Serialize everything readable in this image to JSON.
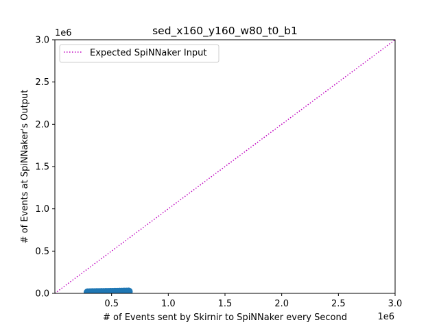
{
  "chart_data": {
    "type": "scatter",
    "title": "sed_x160_y160_w80_t0_b1",
    "xlabel": "# of Events sent by Skirnir to SpiNNaker every Second",
    "ylabel": "# of Events at SpiNNaker's Output",
    "x_offset_label": "1e6",
    "y_offset_label": "1e6",
    "xlim": [
      0,
      3000000
    ],
    "ylim": [
      0,
      3000000
    ],
    "x_ticks": [
      500000,
      1000000,
      1500000,
      2000000,
      2500000,
      3000000
    ],
    "x_tick_labels": [
      "0.5",
      "1.0",
      "1.5",
      "2.0",
      "2.5",
      "3.0"
    ],
    "y_ticks": [
      0,
      500000,
      1000000,
      1500000,
      2000000,
      2500000,
      3000000
    ],
    "y_tick_labels": [
      "0.0",
      "0.5",
      "1.0",
      "1.5",
      "2.0",
      "2.5",
      "3.0"
    ],
    "grid": false,
    "legend_position": "top-left",
    "series": [
      {
        "name": "",
        "kind": "scatter",
        "color": "#1f77b4",
        "x": [
          290000,
          310000,
          330000,
          350000,
          370000,
          390000,
          410000,
          430000,
          450000,
          470000,
          490000,
          510000,
          530000,
          550000,
          570000,
          590000,
          610000,
          630000,
          650000
        ],
        "y": [
          10000,
          11000,
          12000,
          12500,
          13000,
          13500,
          14000,
          14500,
          15000,
          15500,
          16000,
          16500,
          17000,
          17500,
          18000,
          18500,
          19000,
          19500,
          20000
        ]
      },
      {
        "name": "Expected SpiNNaker Input",
        "kind": "line",
        "style": "dotted",
        "color": "#bf00bf",
        "x": [
          0,
          3000000
        ],
        "y": [
          0,
          3000000
        ]
      }
    ]
  }
}
